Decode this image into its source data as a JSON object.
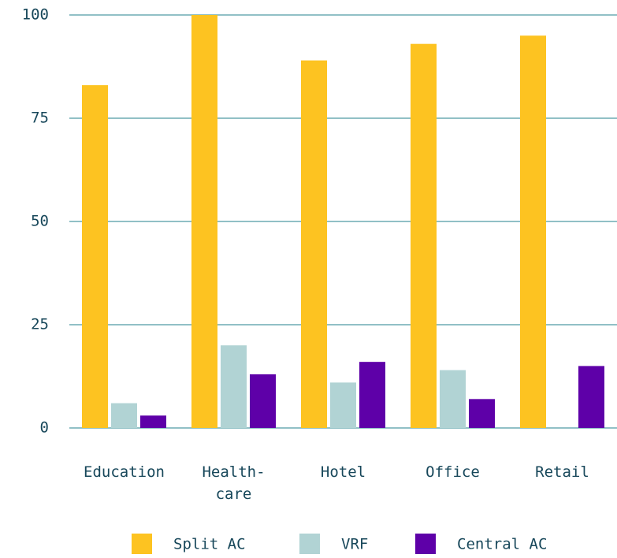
{
  "chart_data": {
    "type": "bar",
    "categories": [
      "Education",
      "Health-\ncare",
      "Hotel",
      "Office",
      "Retail"
    ],
    "series": [
      {
        "name": "Split AC",
        "color": "#fdc321",
        "values": [
          83,
          100,
          89,
          93,
          95
        ]
      },
      {
        "name": "VRF",
        "color": "#b1d3d4",
        "values": [
          6,
          20,
          11,
          14,
          null
        ]
      },
      {
        "name": "Central AC",
        "color": "#5e00a8",
        "values": [
          3,
          13,
          16,
          7,
          15
        ]
      }
    ],
    "ylim": [
      0,
      100
    ],
    "yticks": [
      0,
      25,
      50,
      75,
      100
    ],
    "grid": true
  }
}
